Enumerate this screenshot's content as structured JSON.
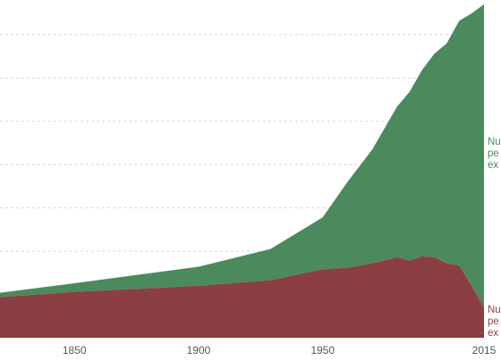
{
  "chart_data": {
    "type": "area",
    "stacked": true,
    "x_ticks": [
      1850,
      1900,
      1950,
      2015
    ],
    "xlim": [
      1820,
      2015
    ],
    "ylim": [
      0,
      7.8
    ],
    "grid": true,
    "x": [
      1820,
      1850,
      1900,
      1929,
      1950,
      1960,
      1970,
      1980,
      1985,
      1990,
      1995,
      2000,
      2005,
      2010,
      2015
    ],
    "series": [
      {
        "name": "Nu pe ex",
        "color": "#4a8a5c",
        "values": [
          0.1,
          0.2,
          0.44,
          0.72,
          1.2,
          1.98,
          2.63,
          3.48,
          3.9,
          4.3,
          4.7,
          5.08,
          5.65,
          6.29,
          7.0
        ]
      },
      {
        "name": "Nu pe ex",
        "color": "#8b3f42",
        "values": [
          0.94,
          1.06,
          1.2,
          1.33,
          1.58,
          1.62,
          1.72,
          1.86,
          1.78,
          1.88,
          1.86,
          1.72,
          1.67,
          1.2,
          0.7
        ]
      }
    ]
  }
}
